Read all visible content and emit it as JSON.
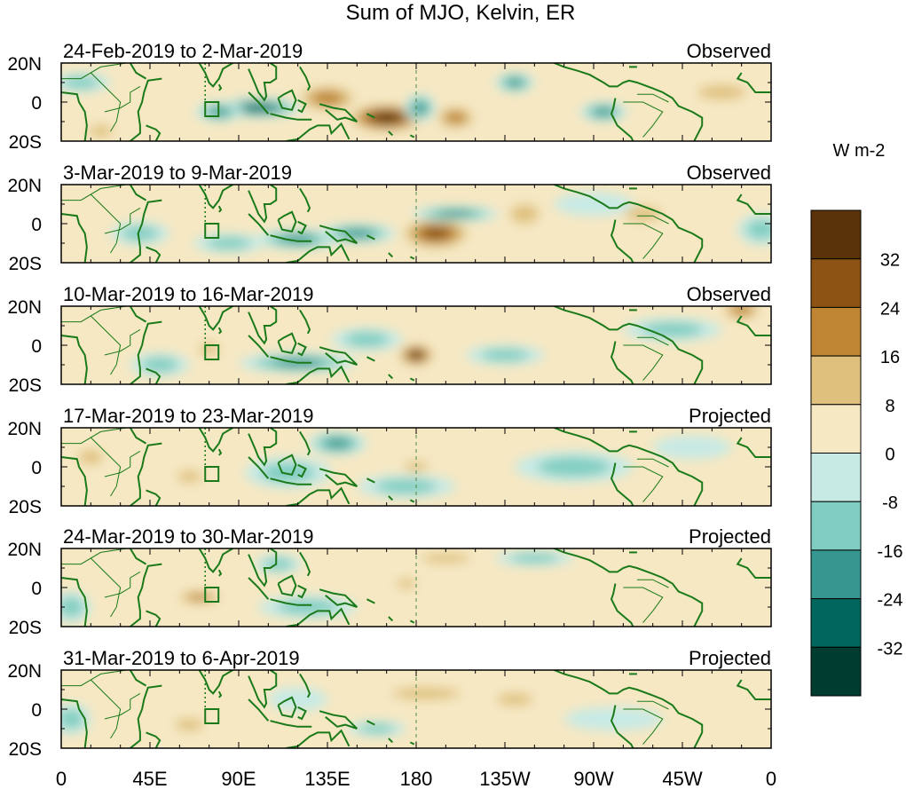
{
  "title": "Sum of MJO, Kelvin, ER",
  "colorbar": {
    "unit": "W m-2",
    "colors": [
      "#5a3408",
      "#8c5314",
      "#bf8532",
      "#dfc17d",
      "#f6e8c3",
      "#c7eae5",
      "#80cdc1",
      "#35978f",
      "#01665e",
      "#003c30"
    ],
    "tick_labels": [
      "32",
      "24",
      "16",
      "8",
      "0",
      "-8",
      "-16",
      "-24",
      "-32"
    ]
  },
  "coast_color": "#1a7a1a",
  "panels": [
    {
      "date": "24-Feb-2019 to 2-Mar-2019",
      "status": "Observed",
      "dashed_180": true,
      "blobs": [
        {
          "lon": 165,
          "lat": -8,
          "v": 36,
          "rx": 22,
          "ry": 8
        },
        {
          "lon": 135,
          "lat": 2,
          "v": 20,
          "rx": 18,
          "ry": 8
        },
        {
          "lon": 200,
          "lat": -8,
          "v": 22,
          "rx": 12,
          "ry": 7
        },
        {
          "lon": 100,
          "lat": -3,
          "v": -30,
          "rx": 22,
          "ry": 5
        },
        {
          "lon": 80,
          "lat": -5,
          "v": -22,
          "rx": 12,
          "ry": 5
        },
        {
          "lon": 182,
          "lat": -3,
          "v": -20,
          "rx": 8,
          "ry": 7
        },
        {
          "lon": 230,
          "lat": 10,
          "v": -18,
          "rx": 10,
          "ry": 5
        },
        {
          "lon": 275,
          "lat": -5,
          "v": -18,
          "rx": 12,
          "ry": 5
        },
        {
          "lon": 335,
          "lat": 5,
          "v": 16,
          "rx": 20,
          "ry": 6
        },
        {
          "lon": 20,
          "lat": -15,
          "v": 14,
          "rx": 10,
          "ry": 5
        },
        {
          "lon": 10,
          "lat": 10,
          "v": -14,
          "rx": 15,
          "ry": 5
        }
      ]
    },
    {
      "date": "3-Mar-2019 to 9-Mar-2019",
      "status": "Observed",
      "dashed_180": true,
      "blobs": [
        {
          "lon": 190,
          "lat": -5,
          "v": 30,
          "rx": 20,
          "ry": 9
        },
        {
          "lon": 235,
          "lat": 5,
          "v": 14,
          "rx": 12,
          "ry": 8
        },
        {
          "lon": 295,
          "lat": 5,
          "v": 10,
          "rx": 15,
          "ry": 6
        },
        {
          "lon": 120,
          "lat": -8,
          "v": -24,
          "rx": 22,
          "ry": 5
        },
        {
          "lon": 150,
          "lat": -5,
          "v": -18,
          "rx": 20,
          "ry": 5
        },
        {
          "lon": 200,
          "lat": 5,
          "v": -18,
          "rx": 22,
          "ry": 4
        },
        {
          "lon": 85,
          "lat": -10,
          "v": -14,
          "rx": 18,
          "ry": 5
        },
        {
          "lon": 40,
          "lat": -5,
          "v": -12,
          "rx": 15,
          "ry": 6
        },
        {
          "lon": 355,
          "lat": -3,
          "v": -14,
          "rx": 12,
          "ry": 8
        },
        {
          "lon": 270,
          "lat": 10,
          "v": -8,
          "rx": 20,
          "ry": 6
        }
      ]
    },
    {
      "date": "10-Mar-2019 to 16-Mar-2019",
      "status": "Observed",
      "dashed_180": false,
      "blobs": [
        {
          "lon": 180,
          "lat": -5,
          "v": 38,
          "rx": 10,
          "ry": 6
        },
        {
          "lon": 345,
          "lat": 18,
          "v": 20,
          "rx": 12,
          "ry": 6
        },
        {
          "lon": 75,
          "lat": -2,
          "v": 16,
          "rx": 8,
          "ry": 5
        },
        {
          "lon": 120,
          "lat": -9,
          "v": -22,
          "rx": 30,
          "ry": 5
        },
        {
          "lon": 155,
          "lat": 3,
          "v": -16,
          "rx": 18,
          "ry": 6
        },
        {
          "lon": 225,
          "lat": -5,
          "v": -12,
          "rx": 20,
          "ry": 5
        },
        {
          "lon": 310,
          "lat": 8,
          "v": -10,
          "rx": 25,
          "ry": 6
        },
        {
          "lon": 50,
          "lat": -10,
          "v": -10,
          "rx": 15,
          "ry": 6
        }
      ]
    },
    {
      "date": "17-Mar-2019 to 23-Mar-2019",
      "status": "Projected",
      "dashed_180": true,
      "blobs": [
        {
          "lon": 140,
          "lat": 12,
          "v": -18,
          "rx": 15,
          "ry": 6
        },
        {
          "lon": 115,
          "lat": -3,
          "v": -14,
          "rx": 22,
          "ry": 8
        },
        {
          "lon": 175,
          "lat": -10,
          "v": -10,
          "rx": 25,
          "ry": 6
        },
        {
          "lon": 65,
          "lat": -5,
          "v": 12,
          "rx": 10,
          "ry": 5
        },
        {
          "lon": 15,
          "lat": 5,
          "v": 10,
          "rx": 10,
          "ry": 6
        },
        {
          "lon": 180,
          "lat": 0,
          "v": 9,
          "rx": 10,
          "ry": 4
        },
        {
          "lon": 260,
          "lat": 0,
          "v": -9,
          "rx": 30,
          "ry": 8
        },
        {
          "lon": 320,
          "lat": 10,
          "v": -8,
          "rx": 20,
          "ry": 6
        }
      ]
    },
    {
      "date": "24-Mar-2019 to 30-Mar-2019",
      "status": "Projected",
      "dashed_180": true,
      "blobs": [
        {
          "lon": 70,
          "lat": -5,
          "v": 20,
          "rx": 14,
          "ry": 4
        },
        {
          "lon": 175,
          "lat": 2,
          "v": 12,
          "rx": 8,
          "ry": 4
        },
        {
          "lon": 195,
          "lat": 15,
          "v": 10,
          "rx": 20,
          "ry": 4
        },
        {
          "lon": 125,
          "lat": -10,
          "v": -12,
          "rx": 25,
          "ry": 6
        },
        {
          "lon": 240,
          "lat": 15,
          "v": -10,
          "rx": 20,
          "ry": 4
        },
        {
          "lon": 5,
          "lat": -10,
          "v": -14,
          "rx": 10,
          "ry": 8
        },
        {
          "lon": 110,
          "lat": 12,
          "v": -9,
          "rx": 12,
          "ry": 5
        }
      ]
    },
    {
      "date": "31-Mar-2019 to 6-Apr-2019",
      "status": "Projected",
      "dashed_180": true,
      "blobs": [
        {
          "lon": 185,
          "lat": 8,
          "v": 12,
          "rx": 28,
          "ry": 5
        },
        {
          "lon": 230,
          "lat": 5,
          "v": 10,
          "rx": 15,
          "ry": 5
        },
        {
          "lon": 65,
          "lat": -8,
          "v": 10,
          "rx": 12,
          "ry": 5
        },
        {
          "lon": 160,
          "lat": -10,
          "v": -12,
          "rx": 15,
          "ry": 4
        },
        {
          "lon": 120,
          "lat": 5,
          "v": -8,
          "rx": 15,
          "ry": 6
        },
        {
          "lon": 5,
          "lat": -5,
          "v": -10,
          "rx": 10,
          "ry": 8
        },
        {
          "lon": 280,
          "lat": -5,
          "v": -8,
          "rx": 25,
          "ry": 6
        }
      ]
    }
  ],
  "y_ticks": [
    "20N",
    "0",
    "20S"
  ],
  "x_ticks": [
    "0",
    "45E",
    "90E",
    "135E",
    "180",
    "135W",
    "90W",
    "45W",
    "0"
  ]
}
